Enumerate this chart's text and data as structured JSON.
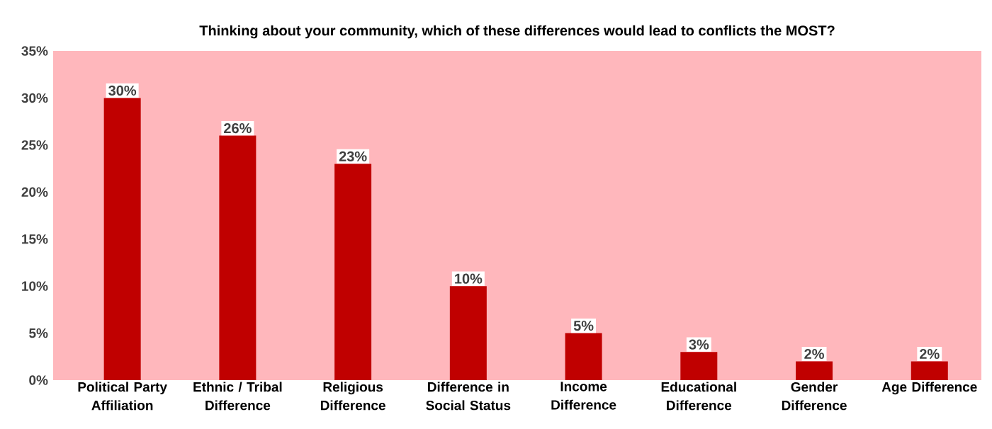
{
  "chart_data": {
    "type": "bar",
    "title": "Thinking about your community, which of these differences would lead to conflicts the MOST?",
    "categories": [
      "Political Party Affiliation",
      "Ethnic / Tribal Difference",
      "Religious Difference",
      "Difference in Social Status",
      "Income Difference",
      "Educational Difference",
      "Gender Difference",
      "Age Difference"
    ],
    "values": [
      30,
      26,
      23,
      10,
      5,
      3,
      2,
      2
    ],
    "value_labels": [
      "30%",
      "26%",
      "23%",
      "10%",
      "5%",
      "3%",
      "2%",
      "2%"
    ],
    "color": "#c00000",
    "ylim": [
      0,
      35
    ],
    "yticks": [
      {
        "value": 0,
        "label": "0%"
      },
      {
        "value": 5,
        "label": "5%"
      },
      {
        "value": 10,
        "label": "10%"
      },
      {
        "value": 15,
        "label": "15%"
      },
      {
        "value": 20,
        "label": "20%"
      },
      {
        "value": 25,
        "label": "25%"
      },
      {
        "value": 30,
        "label": "30%"
      },
      {
        "value": 35,
        "label": "35%"
      }
    ],
    "grid": false
  }
}
